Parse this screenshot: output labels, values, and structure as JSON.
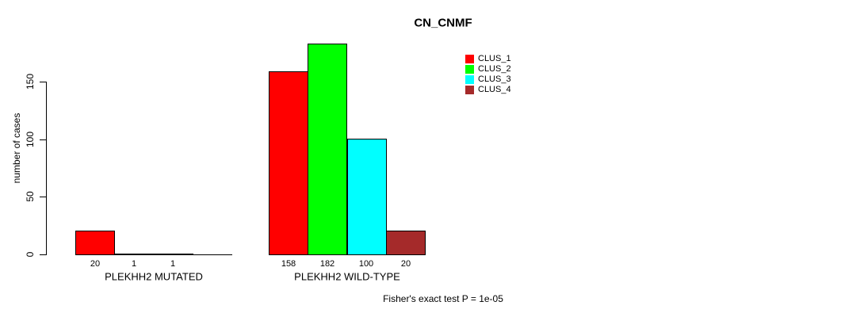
{
  "title": "CN_CNMF",
  "y_axis": {
    "label": "number of cases",
    "ticks": [
      0,
      50,
      100,
      150
    ]
  },
  "legend": {
    "items": [
      {
        "label": "CLUS_1",
        "color": "#FF0000"
      },
      {
        "label": "CLUS_2",
        "color": "#00FF00"
      },
      {
        "label": "CLUS_3",
        "color": "#00FFFF"
      },
      {
        "label": "CLUS_4",
        "color": "#A52A2A"
      }
    ]
  },
  "footer": "Fisher's exact test P = 1e-05",
  "chart_data": {
    "type": "bar",
    "title": "CN_CNMF",
    "xlabel": "",
    "ylabel": "number of cases",
    "ylim": [
      0,
      186
    ],
    "yticks": [
      0,
      50,
      100,
      150
    ],
    "grid": false,
    "legend_position": "top-right",
    "categories": [
      "PLEKHH2 MUTATED",
      "PLEKHH2 WILD-TYPE"
    ],
    "series": [
      {
        "name": "CLUS_1",
        "color": "#FF0000",
        "values": [
          20,
          158
        ]
      },
      {
        "name": "CLUS_2",
        "color": "#00FF00",
        "values": [
          1,
          182
        ]
      },
      {
        "name": "CLUS_3",
        "color": "#00FFFF",
        "values": [
          1,
          100
        ]
      },
      {
        "name": "CLUS_4",
        "color": "#A52A2A",
        "values": [
          0,
          20
        ]
      }
    ],
    "bar_value_labels": [
      [
        "20",
        "1",
        "1",
        ""
      ],
      [
        "158",
        "182",
        "100",
        "20"
      ]
    ],
    "annotation": "Fisher's exact test P = 1e-05"
  }
}
